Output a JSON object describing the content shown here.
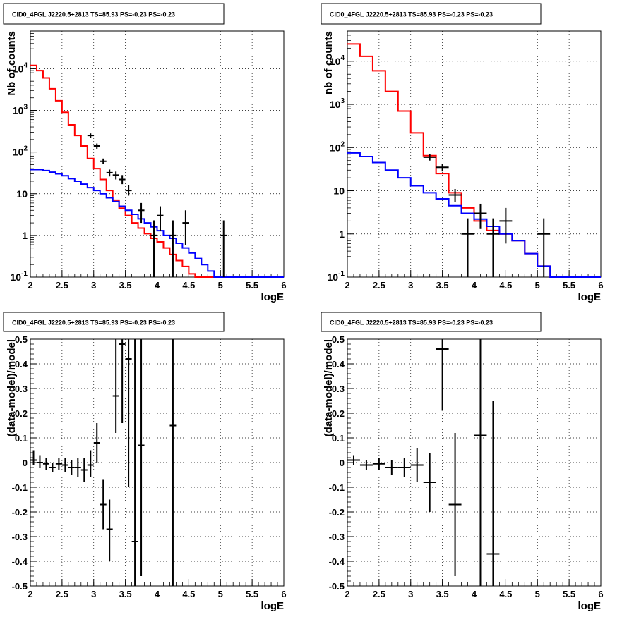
{
  "chart_data": [
    {
      "type": "line",
      "title": "CID0_4FGL J2220.5+2813 TS=85.93 PS=-0.23 PS=-0.23",
      "xlabel": "logE",
      "ylabel": "Nb of counts",
      "xlim": [
        2,
        6
      ],
      "ylim": [
        0.1,
        80000
      ],
      "yscale": "log",
      "grid": true,
      "x_ticks": [
        "2",
        "2.5",
        "3",
        "3.5",
        "4",
        "4.5",
        "5",
        "5.5",
        "6"
      ],
      "y_ticks": [
        "10^-1",
        "1",
        "10",
        "10^2",
        "10^3",
        "10^4"
      ],
      "bin_edges": [
        2.0,
        2.1,
        2.2,
        2.3,
        2.4,
        2.5,
        2.6,
        2.7,
        2.8,
        2.9,
        3.0,
        3.1,
        3.2,
        3.3,
        3.4,
        3.5,
        3.6,
        3.7,
        3.8,
        3.9,
        4.0,
        4.1,
        4.2,
        4.3,
        4.4,
        4.5,
        4.6,
        4.7,
        4.8,
        4.9,
        5.0,
        5.1,
        5.2,
        5.3,
        5.4,
        5.5,
        5.6,
        5.7,
        5.8,
        5.9,
        6.0
      ],
      "series": [
        {
          "name": "",
          "color": "#ff0000",
          "style": "step",
          "values": [
            12000,
            9000,
            6000,
            3300,
            1700,
            900,
            450,
            250,
            140,
            70,
            40,
            22,
            12,
            7,
            4.5,
            3,
            2,
            1.5,
            1.1,
            0.85,
            0.7,
            0.5,
            0.35,
            0.25,
            0.18,
            0.12,
            0.09,
            0.09,
            0.09,
            0.09,
            0.09,
            0.09,
            0.09,
            0.09,
            0.09,
            0.09,
            0.09,
            0.09,
            0.09,
            0.09
          ]
        },
        {
          "name": "",
          "color": "#0000ff",
          "style": "step",
          "values": [
            38,
            38,
            36,
            33,
            30,
            27,
            23,
            20,
            17,
            14,
            12,
            10,
            8,
            6.5,
            5,
            4,
            3.2,
            2.5,
            2,
            1.6,
            1.3,
            1.0,
            0.85,
            0.65,
            0.5,
            0.38,
            0.28,
            0.2,
            0.14,
            0.1,
            0.09,
            0.09,
            0.09,
            0.09,
            0.09,
            0.09,
            0.09,
            0.09,
            0.09,
            0.09
          ]
        }
      ],
      "points": [
        {
          "x": 2.95,
          "y": 250,
          "lo": 220,
          "hi": 280
        },
        {
          "x": 3.05,
          "y": 140,
          "lo": 120,
          "hi": 160
        },
        {
          "x": 3.15,
          "y": 60,
          "lo": 52,
          "hi": 70
        },
        {
          "x": 3.25,
          "y": 32,
          "lo": 26,
          "hi": 38
        },
        {
          "x": 3.35,
          "y": 28,
          "lo": 22,
          "hi": 34
        },
        {
          "x": 3.45,
          "y": 22,
          "lo": 17,
          "hi": 28
        },
        {
          "x": 3.55,
          "y": 12,
          "lo": 9,
          "hi": 16
        },
        {
          "x": 3.75,
          "y": 4,
          "lo": 2,
          "hi": 6
        },
        {
          "x": 3.95,
          "y": 1,
          "lo": 0.1,
          "hi": 2.3
        },
        {
          "x": 4.05,
          "y": 3,
          "lo": 1.3,
          "hi": 5
        },
        {
          "x": 4.25,
          "y": 1,
          "lo": 0.1,
          "hi": 2.3
        },
        {
          "x": 4.45,
          "y": 2,
          "lo": 0.6,
          "hi": 4
        },
        {
          "x": 5.05,
          "y": 1,
          "lo": 0.1,
          "hi": 2.3
        }
      ]
    },
    {
      "type": "line",
      "title": "CID0_4FGL J2220.5+2813 TS=85.93 PS=-0.23 PS=-0.23",
      "xlabel": "logE",
      "ylabel": "nb of counts",
      "xlim": [
        2,
        6
      ],
      "ylim": [
        0.1,
        50000
      ],
      "yscale": "log",
      "grid": true,
      "x_ticks": [
        "2",
        "2.5",
        "3",
        "3.5",
        "4",
        "4.5",
        "5",
        "5.5",
        "6"
      ],
      "y_ticks": [
        "10^-1",
        "1",
        "10",
        "10^2",
        "10^3",
        "10^4"
      ],
      "bin_edges": [
        2.0,
        2.2,
        2.4,
        2.6,
        2.8,
        3.0,
        3.2,
        3.4,
        3.6,
        3.8,
        4.0,
        4.2,
        4.4,
        4.6,
        4.8,
        5.0,
        5.2,
        5.4,
        5.6,
        5.8,
        6.0
      ],
      "series": [
        {
          "name": "",
          "color": "#ff0000",
          "style": "step",
          "values": [
            25000,
            13000,
            6000,
            2000,
            700,
            220,
            65,
            25,
            9,
            4,
            2,
            1.2,
            1,
            0.7,
            0.35,
            0.18,
            0.1,
            0.09,
            0.09,
            0.09
          ]
        },
        {
          "name": "",
          "color": "#0000ff",
          "style": "step",
          "values": [
            75,
            62,
            45,
            30,
            20,
            13,
            9,
            6.5,
            4.5,
            3,
            2.2,
            1.5,
            1,
            0.7,
            0.35,
            0.18,
            0.1,
            0.09,
            0.09,
            0.09
          ]
        }
      ],
      "points": [
        {
          "x": 3.3,
          "y": 60,
          "lo": 50,
          "hi": 70
        },
        {
          "x": 3.5,
          "y": 35,
          "lo": 28,
          "hi": 42
        },
        {
          "x": 3.7,
          "y": 8,
          "lo": 5.5,
          "hi": 11
        },
        {
          "x": 3.9,
          "y": 1,
          "lo": 0.1,
          "hi": 2.3
        },
        {
          "x": 4.1,
          "y": 3,
          "lo": 1.3,
          "hi": 5
        },
        {
          "x": 4.3,
          "y": 1,
          "lo": 0.1,
          "hi": 2.3
        },
        {
          "x": 4.5,
          "y": 2,
          "lo": 0.6,
          "hi": 4
        },
        {
          "x": 5.1,
          "y": 1,
          "lo": 0.1,
          "hi": 2.3
        }
      ]
    },
    {
      "type": "scatter",
      "title": "CID0_4FGL J2220.5+2813 TS=85.93 PS=-0.23 PS=-0.23",
      "xlabel": "logE",
      "ylabel": "(data-model)/model",
      "xlim": [
        2,
        6
      ],
      "ylim": [
        -0.5,
        0.5
      ],
      "yscale": "linear",
      "grid": true,
      "x_ticks": [
        "2",
        "2.5",
        "3",
        "3.5",
        "4",
        "4.5",
        "5",
        "5.5",
        "6"
      ],
      "y_ticks": [
        "-0.5",
        "-0.4",
        "-0.3",
        "-0.2",
        "-0.1",
        "0",
        "0.1",
        "0.2",
        "0.3",
        "0.4",
        "0.5"
      ],
      "points": [
        {
          "x": 2.05,
          "y": 0.01,
          "lo": -0.01,
          "hi": 0.05,
          "xerr": 0.05
        },
        {
          "x": 2.15,
          "y": 0.0,
          "lo": -0.02,
          "hi": 0.03,
          "xerr": 0.05
        },
        {
          "x": 2.25,
          "y": -0.005,
          "lo": -0.03,
          "hi": 0.02,
          "xerr": 0.05
        },
        {
          "x": 2.35,
          "y": -0.02,
          "lo": -0.04,
          "hi": 0.0,
          "xerr": 0.05
        },
        {
          "x": 2.45,
          "y": -0.005,
          "lo": -0.03,
          "hi": 0.02,
          "xerr": 0.05
        },
        {
          "x": 2.55,
          "y": -0.01,
          "lo": -0.04,
          "hi": 0.02,
          "xerr": 0.05
        },
        {
          "x": 2.65,
          "y": -0.02,
          "lo": -0.05,
          "hi": 0.01,
          "xerr": 0.05
        },
        {
          "x": 2.75,
          "y": -0.02,
          "lo": -0.06,
          "hi": 0.02,
          "xerr": 0.05
        },
        {
          "x": 2.85,
          "y": -0.03,
          "lo": -0.08,
          "hi": 0.02,
          "xerr": 0.05
        },
        {
          "x": 2.95,
          "y": -0.01,
          "lo": -0.06,
          "hi": 0.05,
          "xerr": 0.05
        },
        {
          "x": 3.05,
          "y": 0.08,
          "lo": 0.0,
          "hi": 0.16,
          "xerr": 0.05
        },
        {
          "x": 3.15,
          "y": -0.17,
          "lo": -0.27,
          "hi": -0.07,
          "xerr": 0.05
        },
        {
          "x": 3.25,
          "y": -0.27,
          "lo": -0.4,
          "hi": -0.15,
          "xerr": 0.05
        },
        {
          "x": 3.35,
          "y": 0.27,
          "lo": 0.12,
          "hi": 0.5,
          "xerr": 0.05
        },
        {
          "x": 3.45,
          "y": 0.48,
          "lo": 0.16,
          "hi": 0.5,
          "xerr": 0.05
        },
        {
          "x": 3.55,
          "y": 0.42,
          "lo": -0.1,
          "hi": 0.5,
          "xerr": 0.05
        },
        {
          "x": 3.65,
          "y": -0.32,
          "lo": -0.5,
          "hi": 0.5,
          "xerr": 0.05
        },
        {
          "x": 3.75,
          "y": 0.07,
          "lo": -0.46,
          "hi": 0.5,
          "xerr": 0.05
        },
        {
          "x": 4.25,
          "y": 0.15,
          "lo": -0.5,
          "hi": 0.5,
          "xerr": 0.05
        }
      ]
    },
    {
      "type": "scatter",
      "title": "CID0_4FGL J2220.5+2813 TS=85.93 PS=-0.23 PS=-0.23",
      "xlabel": "logE",
      "ylabel": "(data-model)/model",
      "xlim": [
        2,
        6
      ],
      "ylim": [
        -0.5,
        0.5
      ],
      "yscale": "linear",
      "grid": true,
      "x_ticks": [
        "2",
        "2.5",
        "3",
        "3.5",
        "4",
        "4.5",
        "5",
        "5.5",
        "6"
      ],
      "y_ticks": [
        "-0.5",
        "-0.4",
        "-0.3",
        "-0.2",
        "-0.1",
        "0",
        "0.1",
        "0.2",
        "0.3",
        "0.4",
        "0.5"
      ],
      "points": [
        {
          "x": 2.1,
          "y": 0.01,
          "lo": -0.01,
          "hi": 0.03,
          "xerr": 0.1
        },
        {
          "x": 2.3,
          "y": -0.01,
          "lo": -0.03,
          "hi": 0.01,
          "xerr": 0.1
        },
        {
          "x": 2.5,
          "y": -0.005,
          "lo": -0.03,
          "hi": 0.02,
          "xerr": 0.1
        },
        {
          "x": 2.7,
          "y": -0.02,
          "lo": -0.05,
          "hi": 0.01,
          "xerr": 0.1
        },
        {
          "x": 2.9,
          "y": -0.02,
          "lo": -0.06,
          "hi": 0.02,
          "xerr": 0.1
        },
        {
          "x": 3.1,
          "y": -0.01,
          "lo": -0.08,
          "hi": 0.06,
          "xerr": 0.1
        },
        {
          "x": 3.3,
          "y": -0.08,
          "lo": -0.2,
          "hi": 0.04,
          "xerr": 0.1
        },
        {
          "x": 3.5,
          "y": 0.46,
          "lo": 0.21,
          "hi": 0.5,
          "xerr": 0.1
        },
        {
          "x": 3.7,
          "y": -0.17,
          "lo": -0.46,
          "hi": 0.12,
          "xerr": 0.1
        },
        {
          "x": 4.1,
          "y": 0.11,
          "lo": -0.5,
          "hi": 0.5,
          "xerr": 0.1
        },
        {
          "x": 4.3,
          "y": -0.37,
          "lo": -0.5,
          "hi": 0.25,
          "xerr": 0.1
        }
      ]
    }
  ]
}
